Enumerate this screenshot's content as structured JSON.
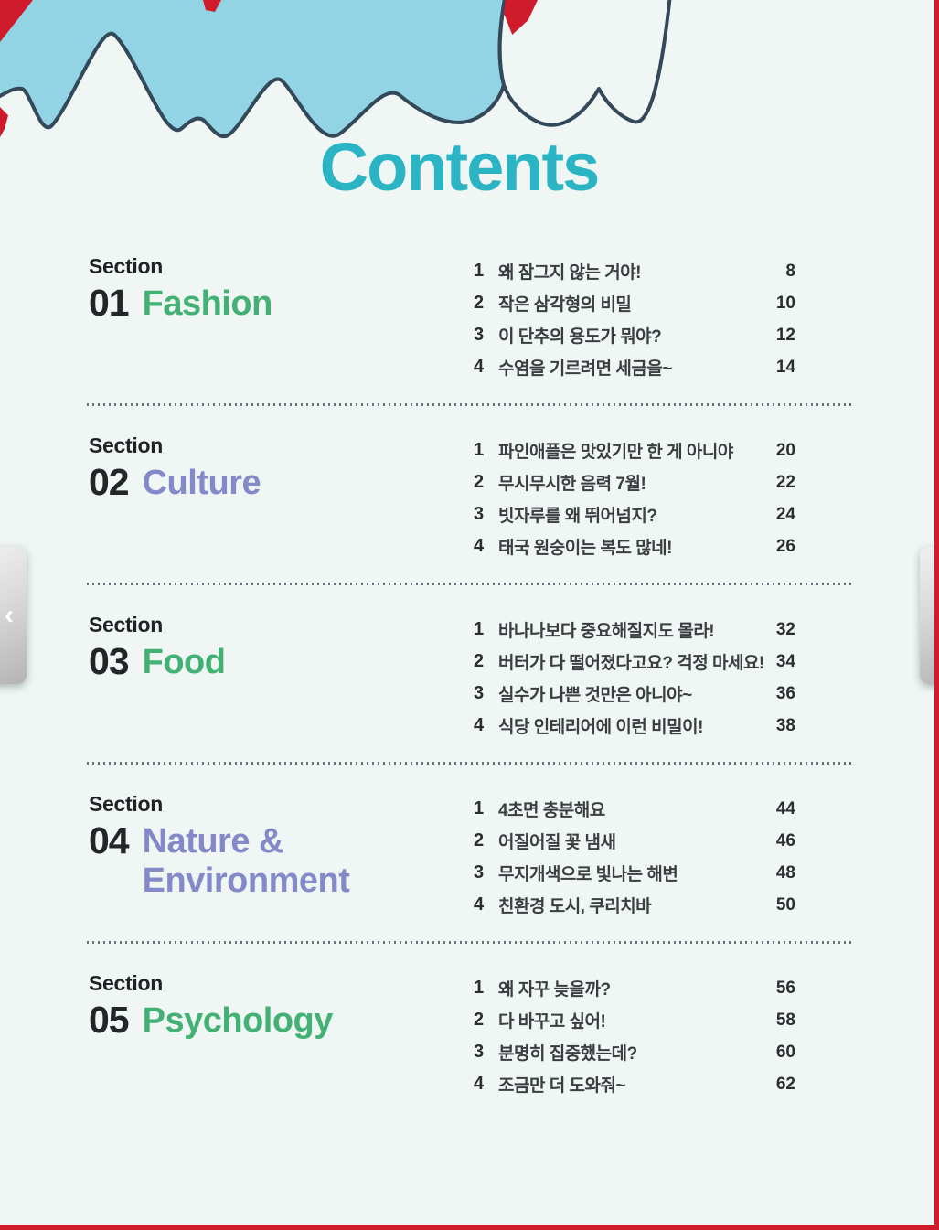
{
  "title": "Contents",
  "reader": {
    "prev_label": "‹",
    "next_label": "›"
  },
  "colors": {
    "sky": "#92d4e4",
    "cloud_outline": "#33495a",
    "page_bg": "#eff6f4",
    "title_teal": "#2ab4c4",
    "green": "#43b173",
    "purple": "#8489c9",
    "accent_red": "#cf1b2b"
  },
  "sections": [
    {
      "label": "Section",
      "number": "01",
      "name": "Fashion",
      "name_color": "#43b173",
      "items": [
        {
          "num": "1",
          "title": "왜 잠그지 않는 거야!",
          "page": "8"
        },
        {
          "num": "2",
          "title": "작은 삼각형의 비밀",
          "page": "10"
        },
        {
          "num": "3",
          "title": "이 단추의 용도가 뭐야?",
          "page": "12"
        },
        {
          "num": "4",
          "title": "수염을 기르려면 세금을~",
          "page": "14"
        }
      ]
    },
    {
      "label": "Section",
      "number": "02",
      "name": "Culture",
      "name_color": "#8489c9",
      "items": [
        {
          "num": "1",
          "title": "파인애플은 맛있기만 한 게 아니야",
          "page": "20"
        },
        {
          "num": "2",
          "title": "무시무시한 음력 7월!",
          "page": "22"
        },
        {
          "num": "3",
          "title": "빗자루를 왜 뛰어넘지?",
          "page": "24"
        },
        {
          "num": "4",
          "title": "태국 원숭이는 복도 많네!",
          "page": "26"
        }
      ]
    },
    {
      "label": "Section",
      "number": "03",
      "name": "Food",
      "name_color": "#43b173",
      "items": [
        {
          "num": "1",
          "title": "바나나보다 중요해질지도 몰라!",
          "page": "32"
        },
        {
          "num": "2",
          "title": "버터가 다 떨어졌다고요? 걱정 마세요!",
          "page": "34"
        },
        {
          "num": "3",
          "title": "실수가 나쁜 것만은 아니야~",
          "page": "36"
        },
        {
          "num": "4",
          "title": "식당 인테리어에 이런 비밀이!",
          "page": "38"
        }
      ]
    },
    {
      "label": "Section",
      "number": "04",
      "name": "Nature & Environment",
      "name_color": "#8489c9",
      "items": [
        {
          "num": "1",
          "title": "4초면 충분해요",
          "page": "44"
        },
        {
          "num": "2",
          "title": "어질어질 꽃 냄새",
          "page": "46"
        },
        {
          "num": "3",
          "title": "무지개색으로 빛나는 해변",
          "page": "48"
        },
        {
          "num": "4",
          "title": "친환경 도시, 쿠리치바",
          "page": "50"
        }
      ]
    },
    {
      "label": "Section",
      "number": "05",
      "name": "Psychology",
      "name_color": "#43b173",
      "items": [
        {
          "num": "1",
          "title": "왜 자꾸 늦을까?",
          "page": "56"
        },
        {
          "num": "2",
          "title": "다 바꾸고 싶어!",
          "page": "58"
        },
        {
          "num": "3",
          "title": "분명히 집중했는데?",
          "page": "60"
        },
        {
          "num": "4",
          "title": "조금만 더 도와줘~",
          "page": "62"
        }
      ]
    }
  ]
}
